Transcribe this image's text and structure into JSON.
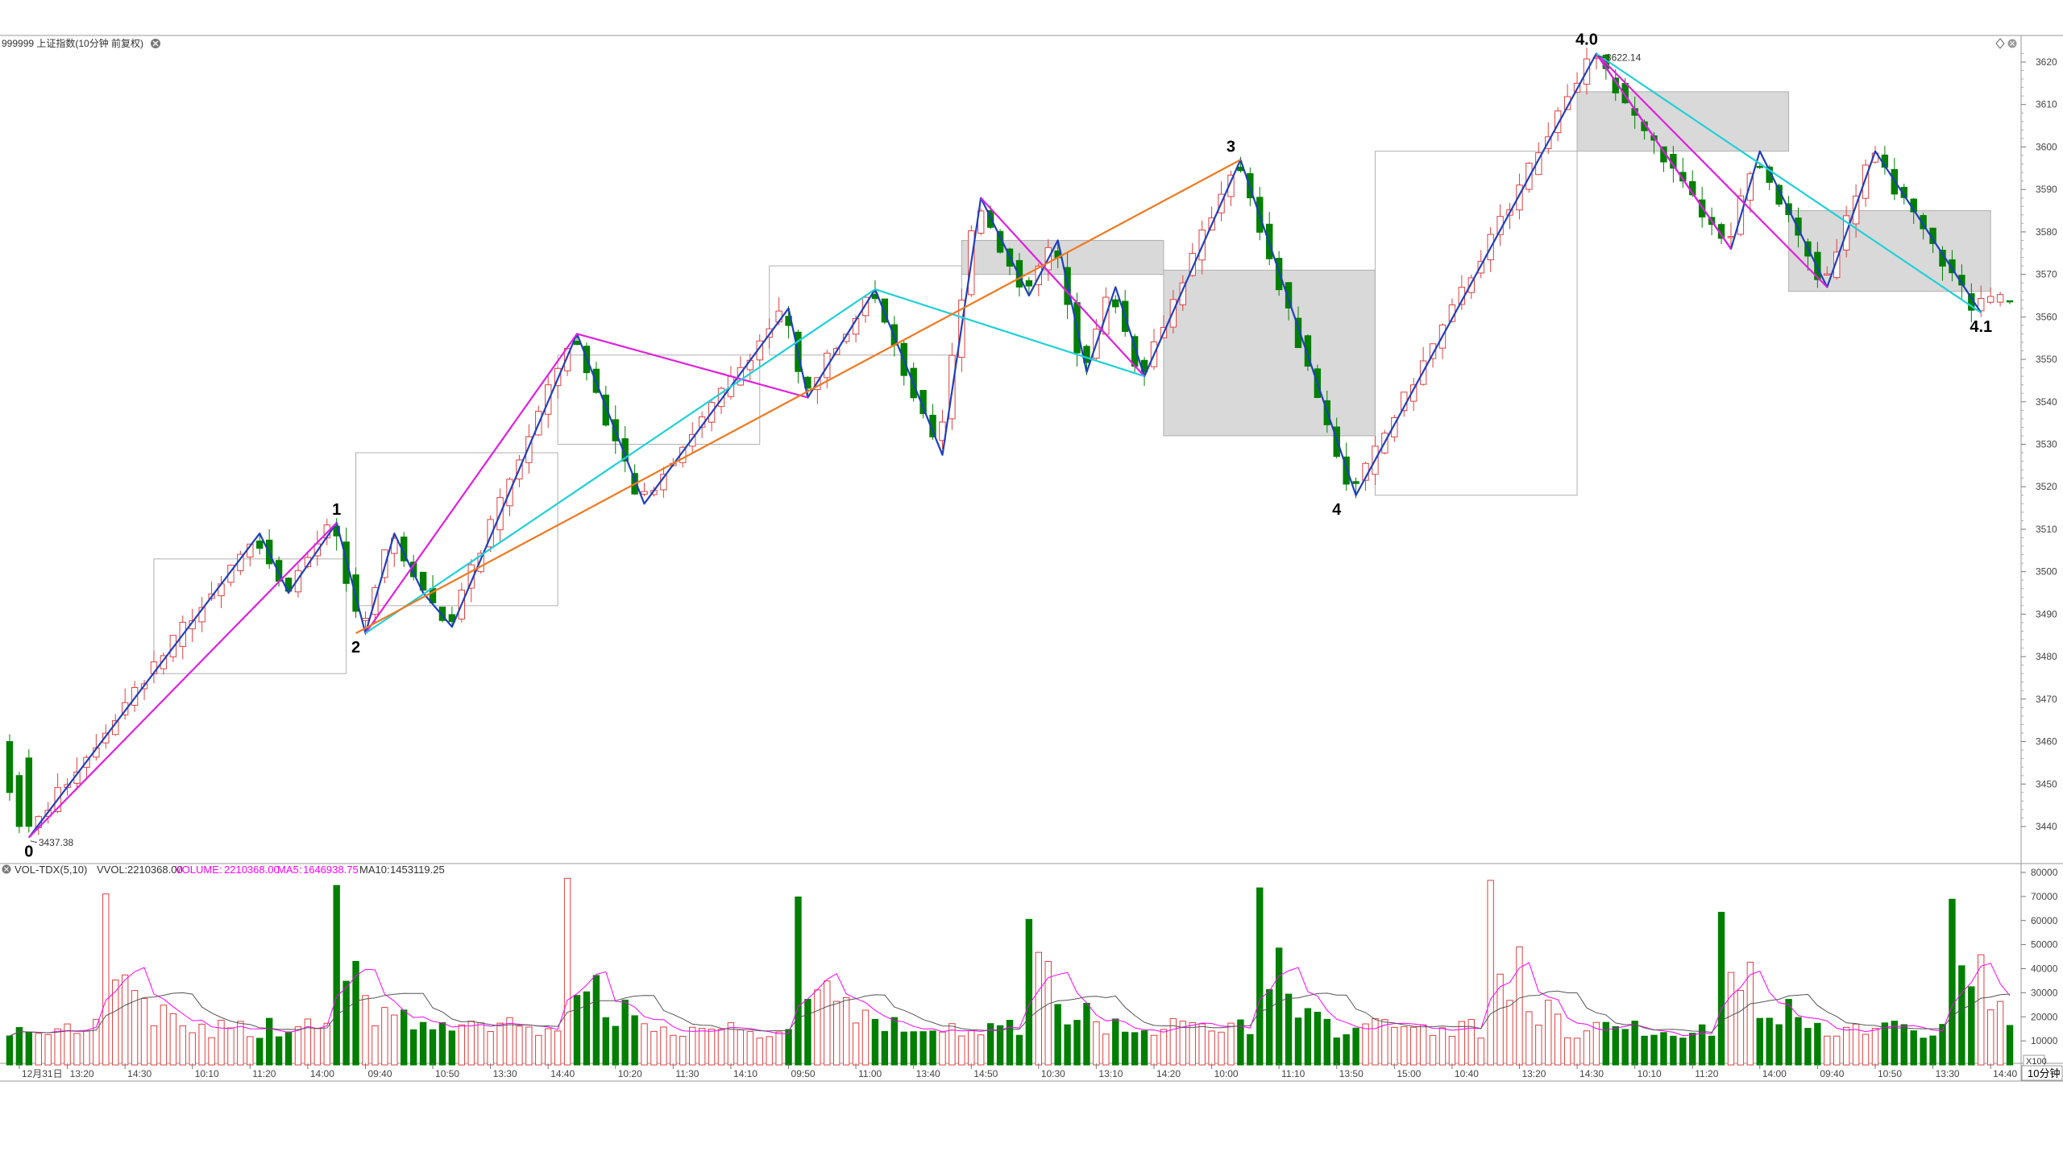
{
  "header": {
    "title": "999999 上证指数(10分钟 前复权)",
    "corner_icon": "diamond-icon",
    "close_icon": "close-icon"
  },
  "indicator_header": {
    "name": "VOL-TDX(5,10)",
    "vvol_label": "VVOL:",
    "vvol_value": "2210368.00",
    "volume_label": "VOLUME:",
    "volume_value": "2210368.00",
    "ma5_label": "MA5:",
    "ma5_value": "1646938.75",
    "ma10_label": "MA10:",
    "ma10_value": "1453119.25",
    "colors": {
      "vvol": "#333333",
      "volume": "#ff00ff",
      "ma5": "#ff00ff",
      "ma10": "#333333"
    }
  },
  "period_button": "10分钟",
  "vol_multiplier": "X100",
  "colors": {
    "up": "#e04040",
    "down": "#007f00",
    "blue_line": "#1f3fbf",
    "magenta_line": "#e020e0",
    "cyan_line": "#20d0d8",
    "orange_line": "#f07820",
    "zone_fill": "#d9d9d9",
    "box_stroke": "#b0b0b0"
  },
  "chart_data": {
    "type": "candlestick",
    "price_axis": {
      "min": 3430,
      "max": 3625,
      "ticks": [
        3440,
        3450,
        3460,
        3470,
        3480,
        3490,
        3500,
        3510,
        3520,
        3530,
        3540,
        3550,
        3560,
        3570,
        3580,
        3590,
        3600,
        3610,
        3620
      ]
    },
    "volume_axis": {
      "min": 0,
      "max": 80000,
      "ticks": [
        10000,
        20000,
        30000,
        40000,
        50000,
        60000,
        70000,
        80000
      ]
    },
    "x_count": 209,
    "time_labels": [
      {
        "i": 1,
        "label": "12月31日"
      },
      {
        "i": 6,
        "label": "13:20"
      },
      {
        "i": 12,
        "label": "14:30"
      },
      {
        "i": 19,
        "label": "10:10"
      },
      {
        "i": 25,
        "label": "11:20"
      },
      {
        "i": 31,
        "label": "14:00"
      },
      {
        "i": 37,
        "label": "09:40"
      },
      {
        "i": 44,
        "label": "10:50"
      },
      {
        "i": 50,
        "label": "13:30"
      },
      {
        "i": 56,
        "label": "14:40"
      },
      {
        "i": 63,
        "label": "10:20"
      },
      {
        "i": 69,
        "label": "11:30"
      },
      {
        "i": 75,
        "label": "14:10"
      },
      {
        "i": 81,
        "label": "09:50"
      },
      {
        "i": 88,
        "label": "11:00"
      },
      {
        "i": 94,
        "label": "13:40"
      },
      {
        "i": 100,
        "label": "14:50"
      },
      {
        "i": 107,
        "label": "10:30"
      },
      {
        "i": 113,
        "label": "13:10"
      },
      {
        "i": 119,
        "label": "14:20"
      },
      {
        "i": 125,
        "label": "10:00"
      },
      {
        "i": 132,
        "label": "11:10"
      },
      {
        "i": 138,
        "label": "13:50"
      },
      {
        "i": 144,
        "label": "15:00"
      },
      {
        "i": 150,
        "label": "10:40"
      },
      {
        "i": 157,
        "label": "13:20"
      },
      {
        "i": 163,
        "label": "14:30"
      },
      {
        "i": 169,
        "label": "10:10"
      },
      {
        "i": 175,
        "label": "11:20"
      },
      {
        "i": 182,
        "label": "14:00"
      },
      {
        "i": 188,
        "label": "09:40"
      },
      {
        "i": 194,
        "label": "10:50"
      },
      {
        "i": 200,
        "label": "13:30"
      },
      {
        "i": 206,
        "label": "14:40"
      }
    ],
    "pivots": [
      {
        "i": 2,
        "p": 3437.4
      },
      {
        "i": 26,
        "p": 3509
      },
      {
        "i": 29,
        "p": 3495
      },
      {
        "i": 34,
        "p": 3511.5
      },
      {
        "i": 37,
        "p": 3485.5
      },
      {
        "i": 40,
        "p": 3509
      },
      {
        "i": 46,
        "p": 3487
      },
      {
        "i": 59,
        "p": 3556
      },
      {
        "i": 66,
        "p": 3516
      },
      {
        "i": 81,
        "p": 3562
      },
      {
        "i": 83,
        "p": 3541
      },
      {
        "i": 90,
        "p": 3566.5
      },
      {
        "i": 97,
        "p": 3527.5
      },
      {
        "i": 101,
        "p": 3588
      },
      {
        "i": 106,
        "p": 3565
      },
      {
        "i": 109,
        "p": 3578
      },
      {
        "i": 112,
        "p": 3547
      },
      {
        "i": 115,
        "p": 3567
      },
      {
        "i": 118,
        "p": 3546
      },
      {
        "i": 128,
        "p": 3597
      },
      {
        "i": 140,
        "p": 3518
      },
      {
        "i": 165,
        "p": 3622
      },
      {
        "i": 179,
        "p": 3576
      },
      {
        "i": 182,
        "p": 3599
      },
      {
        "i": 189,
        "p": 3567
      },
      {
        "i": 194,
        "p": 3599
      },
      {
        "i": 205,
        "p": 3561
      }
    ],
    "price_labels": [
      {
        "i": 2,
        "p": 3437.38,
        "text": "3437.38",
        "pos": "right"
      },
      {
        "i": 165,
        "p": 3622.14,
        "text": "3622.14",
        "pos": "right"
      }
    ],
    "wave_labels": [
      {
        "i": 2,
        "p": 3437.4,
        "text": "0",
        "pos": "below"
      },
      {
        "i": 34,
        "p": 3511.5,
        "text": "1",
        "pos": "above"
      },
      {
        "i": 36,
        "p": 3485.5,
        "text": "2",
        "pos": "below"
      },
      {
        "i": 127,
        "p": 3597,
        "text": "3",
        "pos": "above"
      },
      {
        "i": 138,
        "p": 3518,
        "text": "4",
        "pos": "below"
      },
      {
        "i": 164,
        "p": 3622.14,
        "text": "4.0",
        "pos": "above"
      },
      {
        "i": 205,
        "p": 3561,
        "text": "4.1",
        "pos": "below"
      }
    ],
    "trend_lines": [
      {
        "color": "blue",
        "points": [
          [
            2,
            3437.4
          ],
          [
            26,
            3509
          ],
          [
            29,
            3495
          ],
          [
            34,
            3511.5
          ],
          [
            37,
            3485.5
          ],
          [
            40,
            3509
          ],
          [
            43,
            3495
          ],
          [
            46,
            3487
          ],
          [
            59,
            3556
          ],
          [
            66,
            3516
          ],
          [
            81,
            3562
          ],
          [
            83,
            3541
          ],
          [
            90,
            3566.5
          ],
          [
            97,
            3527.5
          ],
          [
            101,
            3588
          ],
          [
            106,
            3565
          ],
          [
            109,
            3578
          ],
          [
            112,
            3547
          ],
          [
            115,
            3567
          ],
          [
            118,
            3546
          ],
          [
            128,
            3597
          ],
          [
            140,
            3518
          ],
          [
            165,
            3622
          ],
          [
            179,
            3576
          ],
          [
            182,
            3599
          ],
          [
            189,
            3567
          ],
          [
            194,
            3599
          ],
          [
            205,
            3561
          ]
        ]
      },
      {
        "color": "magenta",
        "points": [
          [
            2,
            3437.4
          ],
          [
            34,
            3511.5
          ]
        ]
      },
      {
        "color": "magenta",
        "points": [
          [
            37,
            3485.5
          ],
          [
            59,
            3556
          ],
          [
            83,
            3541
          ]
        ]
      },
      {
        "color": "magenta",
        "points": [
          [
            101,
            3588
          ],
          [
            118,
            3546
          ]
        ]
      },
      {
        "color": "magenta",
        "points": [
          [
            165,
            3622
          ],
          [
            179,
            3576
          ]
        ]
      },
      {
        "color": "magenta",
        "points": [
          [
            165,
            3622
          ],
          [
            189,
            3567
          ]
        ]
      },
      {
        "color": "cyan",
        "points": [
          [
            37,
            3485.5
          ],
          [
            90,
            3566.5
          ],
          [
            118,
            3546
          ]
        ]
      },
      {
        "color": "cyan",
        "points": [
          [
            165,
            3622
          ],
          [
            205,
            3561
          ]
        ]
      },
      {
        "color": "orange",
        "points": [
          [
            36,
            3485.5
          ],
          [
            128,
            3597
          ]
        ]
      }
    ],
    "boxes": [
      {
        "i1": 15,
        "i2": 35,
        "p1": 3476,
        "p2": 3503,
        "filled": false
      },
      {
        "i1": 36,
        "i2": 57,
        "p1": 3492,
        "p2": 3528,
        "filled": false
      },
      {
        "i1": 57,
        "i2": 78,
        "p1": 3530,
        "p2": 3551,
        "filled": false
      },
      {
        "i1": 79,
        "i2": 99,
        "p1": 3551,
        "p2": 3572,
        "filled": false
      },
      {
        "i1": 99,
        "i2": 120,
        "p1": 3570,
        "p2": 3578,
        "filled": true
      },
      {
        "i1": 120,
        "i2": 142,
        "p1": 3532,
        "p2": 3571,
        "filled": true
      },
      {
        "i1": 142,
        "i2": 163,
        "p1": 3518,
        "p2": 3599,
        "filled": false
      },
      {
        "i1": 163,
        "i2": 185,
        "p1": 3599,
        "p2": 3613,
        "filled": true
      },
      {
        "i1": 185,
        "i2": 206,
        "p1": 3566,
        "p2": 3585,
        "filled": true
      }
    ]
  }
}
